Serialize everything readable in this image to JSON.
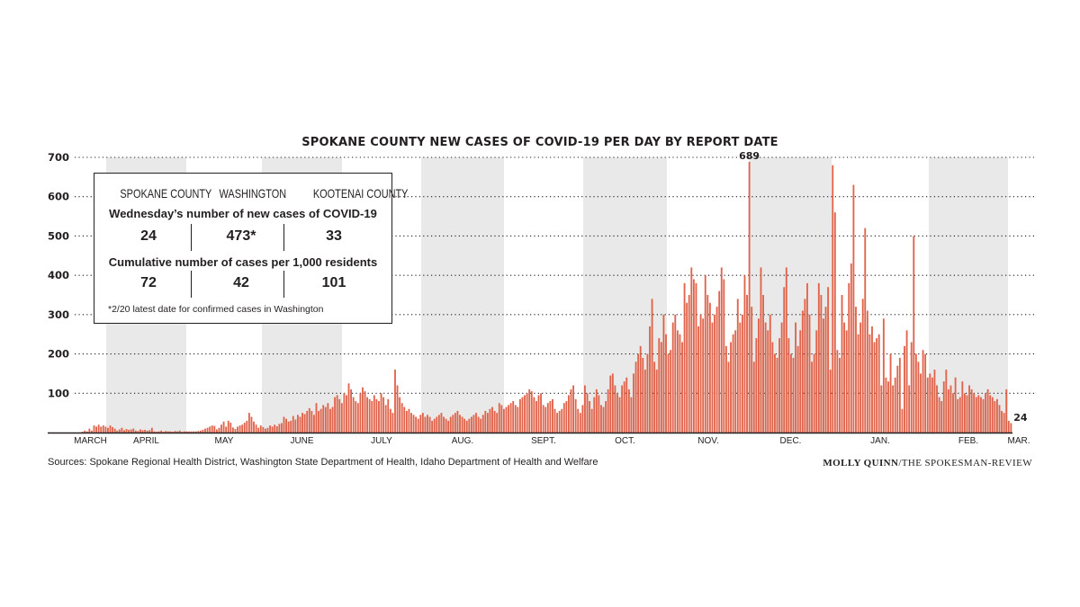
{
  "chart_data": {
    "type": "bar",
    "title": "SPOKANE COUNTY NEW CASES OF COVID-19 PER DAY BY REPORT DATE",
    "ylim": [
      0,
      700
    ],
    "yticks": [
      "700",
      "600",
      "500",
      "400",
      "300",
      "200",
      "100"
    ],
    "month_labels": [
      "MARCH",
      "APRIL",
      "MAY",
      "JUNE",
      "JULY",
      "AUG.",
      "SEPT.",
      "OCT.",
      "NOV.",
      "DEC.",
      "JAN.",
      "FEB.",
      "MAR."
    ],
    "bar_color": "#e0644b",
    "band_color": "#e8e9e8",
    "annotations": {
      "peak": "689",
      "latest": "24"
    },
    "values": [
      0,
      0,
      0,
      2,
      5,
      3,
      10,
      5,
      18,
      15,
      20,
      15,
      18,
      15,
      12,
      18,
      14,
      10,
      5,
      8,
      12,
      6,
      9,
      7,
      8,
      10,
      5,
      4,
      8,
      6,
      7,
      5,
      6,
      12,
      3,
      2,
      3,
      5,
      2,
      4,
      3,
      3,
      2,
      4,
      3,
      5,
      2,
      3,
      3,
      3,
      3,
      3,
      3,
      4,
      5,
      7,
      10,
      12,
      15,
      18,
      17,
      8,
      12,
      20,
      28,
      15,
      30,
      25,
      13,
      9,
      15,
      18,
      20,
      25,
      30,
      50,
      40,
      28,
      20,
      12,
      18,
      14,
      10,
      12,
      18,
      15,
      20,
      16,
      22,
      24,
      40,
      35,
      28,
      30,
      42,
      33,
      45,
      40,
      50,
      47,
      55,
      62,
      55,
      45,
      75,
      55,
      60,
      70,
      65,
      75,
      60,
      65,
      90,
      95,
      85,
      75,
      100,
      95,
      125,
      110,
      90,
      80,
      75,
      100,
      115,
      105,
      90,
      85,
      80,
      95,
      85,
      80,
      100,
      90,
      70,
      85,
      60,
      50,
      160,
      120,
      90,
      75,
      65,
      55,
      60,
      50,
      45,
      40,
      35,
      45,
      50,
      40,
      45,
      40,
      30,
      35,
      40,
      45,
      50,
      40,
      35,
      30,
      40,
      45,
      50,
      55,
      45,
      40,
      35,
      30,
      35,
      40,
      45,
      50,
      40,
      35,
      45,
      55,
      50,
      60,
      65,
      55,
      50,
      75,
      70,
      60,
      65,
      70,
      75,
      80,
      70,
      65,
      85,
      90,
      95,
      100,
      110,
      105,
      90,
      80,
      95,
      100,
      70,
      65,
      75,
      80,
      85,
      60,
      50,
      55,
      60,
      75,
      80,
      95,
      110,
      120,
      85,
      60,
      50,
      70,
      120,
      100,
      80,
      60,
      90,
      110,
      95,
      70,
      65,
      80,
      110,
      145,
      150,
      120,
      100,
      90,
      120,
      130,
      140,
      110,
      90,
      150,
      180,
      200,
      220,
      190,
      160,
      200,
      270,
      340,
      180,
      160,
      240,
      230,
      300,
      250,
      200,
      210,
      280,
      300,
      260,
      250,
      230,
      380,
      330,
      350,
      420,
      390,
      380,
      270,
      300,
      290,
      400,
      350,
      330,
      280,
      300,
      320,
      360,
      420,
      390,
      220,
      180,
      230,
      250,
      260,
      340,
      280,
      300,
      400,
      350,
      689,
      320,
      180,
      240,
      290,
      420,
      350,
      280,
      260,
      300,
      230,
      200,
      190,
      240,
      280,
      370,
      420,
      240,
      200,
      190,
      280,
      220,
      260,
      310,
      340,
      380,
      300,
      180,
      200,
      260,
      380,
      350,
      290,
      320,
      370,
      160,
      680,
      560,
      210,
      190,
      350,
      280,
      260,
      380,
      430,
      630,
      320,
      250,
      280,
      340,
      520,
      310,
      250,
      270,
      230,
      240,
      250,
      120,
      290,
      140,
      130,
      200,
      120,
      140,
      170,
      190,
      60,
      220,
      260,
      120,
      230,
      500,
      200,
      180,
      150,
      210,
      200,
      140,
      150,
      140,
      160,
      120,
      90,
      80,
      130,
      160,
      110,
      120,
      100,
      140,
      85,
      90,
      130,
      100,
      95,
      120,
      110,
      100,
      90,
      95,
      90,
      85,
      100,
      110,
      95,
      90,
      80,
      85,
      70,
      55,
      50,
      110,
      30,
      24
    ]
  },
  "info_box": {
    "col_headers": [
      "SPOKANE COUNTY",
      "WASHINGTON",
      "KOOTENAI COUNTY"
    ],
    "row1_label": "Wednesday’s number of new cases of COVID-19",
    "row1_values": [
      "24",
      "473*",
      "33"
    ],
    "row2_label": "Cumulative number of cases per 1,000 residents",
    "row2_values": [
      "72",
      "42",
      "101"
    ],
    "footnote": "*2/20 latest date for confirmed cases in Washington"
  },
  "sources": "Sources: Spokane Regional Health District, Washington State Department of Health, Idaho Department of Health and Welfare",
  "credit_name": "MOLLY QUINN",
  "credit_org": "/THE SPOKESMAN-REVIEW"
}
